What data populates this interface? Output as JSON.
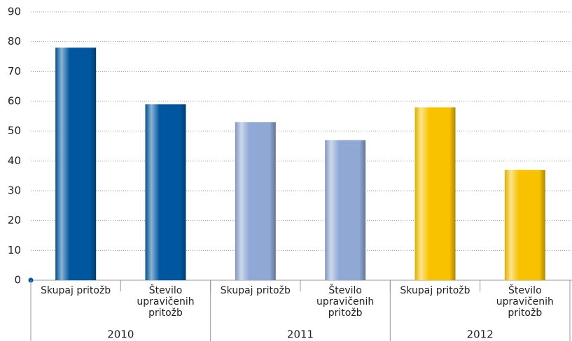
{
  "chart_data": {
    "type": "bar",
    "categories": [
      "Skupaj pritožb",
      "Število upravičenih pritožb",
      "Skupaj pritožb",
      "Število upravičenih pritožb",
      "Skupaj pritožb",
      "Število upravičenih pritožb"
    ],
    "groups": [
      "2010",
      "2011",
      "2012"
    ],
    "values": [
      78,
      59,
      53,
      47,
      58,
      37
    ],
    "colors": [
      "#0057a0",
      "#0057a0",
      "#8fa8d4",
      "#8fa8d4",
      "#f8c200",
      "#f8c200"
    ],
    "ylim": [
      0,
      90
    ],
    "yticks": [
      0,
      10,
      20,
      30,
      40,
      50,
      60,
      70,
      80,
      90
    ],
    "grid": true
  }
}
